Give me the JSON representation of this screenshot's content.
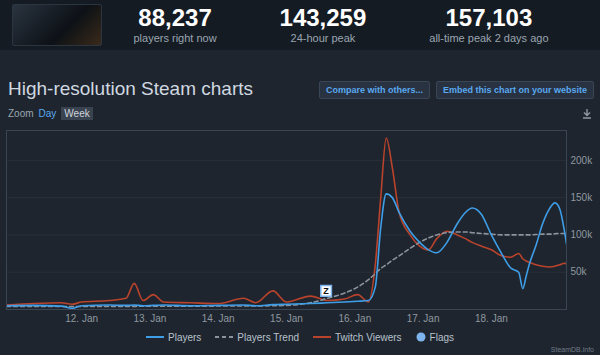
{
  "header": {
    "stats": [
      {
        "value": "88,237",
        "label": "players right now"
      },
      {
        "value": "143,259",
        "label": "24-hour peak"
      },
      {
        "value": "157,103",
        "label": "all-time peak 2 days ago"
      }
    ]
  },
  "toolbar": {
    "buttons": [
      "Compare with others...",
      "Embed this chart on your website"
    ],
    "zoom_label": "Zoom",
    "zoom_options": [
      "Day",
      "Week"
    ]
  },
  "chart_data": {
    "type": "line",
    "title": "High-resolution Steam charts",
    "x": [
      10.9,
      11.3,
      11.7,
      11.86,
      12.0,
      12.4,
      12.65,
      12.77,
      12.9,
      13.05,
      13.2,
      13.6,
      14.0,
      14.37,
      14.55,
      14.8,
      15.0,
      15.35,
      15.6,
      15.85,
      16.04,
      16.2,
      16.3,
      16.38,
      16.46,
      16.55,
      16.65,
      16.81,
      16.95,
      17.08,
      17.2,
      17.35,
      17.5,
      17.62,
      17.72,
      17.85,
      18.0,
      18.15,
      18.28,
      18.4,
      18.46,
      18.51,
      18.56,
      18.65,
      18.75,
      18.85,
      18.93,
      19.0,
      19.07,
      19.1
    ],
    "xlim": [
      10.9,
      19.1
    ],
    "xticks": [
      {
        "value": 12,
        "label": "12. Jan"
      },
      {
        "value": 13,
        "label": "13. Jan"
      },
      {
        "value": 14,
        "label": "14. Jan"
      },
      {
        "value": 15,
        "label": "15. Jan"
      },
      {
        "value": 16,
        "label": "16. Jan"
      },
      {
        "value": 17,
        "label": "17. Jan"
      },
      {
        "value": 18,
        "label": "18. Jan"
      }
    ],
    "ylim": [
      0,
      240000
    ],
    "yticks": [
      {
        "value": 50000,
        "label": "50k"
      },
      {
        "value": 100000,
        "label": "100k"
      },
      {
        "value": 150000,
        "label": "150k"
      },
      {
        "value": 200000,
        "label": "200k"
      }
    ],
    "grid": true,
    "legend": "bottom",
    "series": [
      {
        "name": "Players",
        "color": "#3f9ee8",
        "line_style": "solid",
        "values": [
          5000,
          5500,
          4500,
          1500,
          5000,
          6000,
          5500,
          6000,
          5000,
          5500,
          6000,
          5000,
          5500,
          6000,
          5000,
          6500,
          7000,
          8000,
          9000,
          10000,
          11000,
          12000,
          30000,
          110000,
          155000,
          150000,
          130000,
          105000,
          90000,
          80000,
          76000,
          90000,
          115000,
          130000,
          136000,
          128000,
          100000,
          75000,
          56000,
          50000,
          28000,
          45000,
          62000,
          85000,
          115000,
          135000,
          143000,
          135000,
          105000,
          88000
        ]
      },
      {
        "name": "Players Trend",
        "color": "#8c939c",
        "line_style": "dashed",
        "values": [
          4000,
          4000,
          4000,
          4000,
          4000,
          4100,
          4200,
          4200,
          4300,
          4300,
          4400,
          4500,
          4600,
          4700,
          4800,
          5000,
          5500,
          9000,
          15000,
          22000,
          30000,
          40000,
          48000,
          55000,
          60000,
          66000,
          72000,
          82000,
          90000,
          96000,
          100000,
          103000,
          104000,
          104000,
          103000,
          102000,
          101000,
          100000,
          100000,
          100000,
          100000,
          100000,
          100000,
          100500,
          101000,
          101000,
          101500,
          102000,
          102000,
          102000
        ]
      },
      {
        "name": "Twitch Viewers",
        "color": "#b9432c",
        "line_style": "solid",
        "values": [
          6000,
          8000,
          9000,
          7000,
          10000,
          12000,
          15000,
          35000,
          12000,
          20000,
          10000,
          9000,
          8000,
          15000,
          9000,
          25000,
          10000,
          18000,
          12000,
          14000,
          20000,
          10000,
          60000,
          150000,
          230000,
          190000,
          130000,
          100000,
          85000,
          80000,
          95000,
          105000,
          100000,
          95000,
          90000,
          85000,
          80000,
          72000,
          70000,
          75000,
          68000,
          65000,
          63000,
          60000,
          58000,
          57000,
          58000,
          60000,
          62000,
          61000
        ]
      }
    ],
    "flags": {
      "name": "Flags",
      "color": "#7db4ee",
      "items": [
        {
          "x": 15.58,
          "y": 25000,
          "text": "Z"
        }
      ]
    }
  },
  "footer": {
    "credit": "SteamDB.info"
  }
}
